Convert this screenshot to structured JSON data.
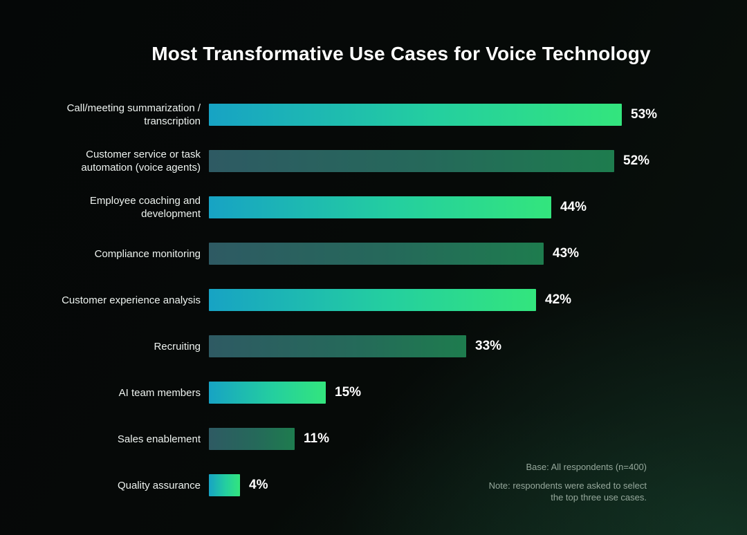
{
  "chart_data": {
    "type": "bar",
    "orientation": "horizontal",
    "title": "Most Transformative Use Cases for Voice Technology",
    "categories": [
      "Call/meeting summarization / transcription",
      "Customer service or task automation (voice agents)",
      "Employee coaching and development",
      "Compliance monitoring",
      "Customer experience analysis",
      "Recruiting",
      "AI team members",
      "Sales enablement",
      "Quality assurance"
    ],
    "values": [
      53,
      52,
      44,
      43,
      42,
      33,
      15,
      11,
      4
    ],
    "value_suffix": "%",
    "xlim": [
      0,
      55
    ],
    "xlabel": "",
    "ylabel": "",
    "grid": false,
    "legend": false,
    "bar_style_alternation": [
      "bright",
      "dark"
    ],
    "colors": {
      "bright_gradient_start": "#17a3c4",
      "bright_gradient_end": "#33e57d",
      "dark_gradient_start": "#2e5a63",
      "dark_gradient_end": "#1e7c4e",
      "background": "#060a08",
      "title_text": "#ffffff",
      "label_text": "#eef3f0",
      "note_text": "#96a89c"
    }
  },
  "notes": {
    "base": "Base: All respondents (n=400)",
    "method": "Note: respondents were asked to select the top three use cases."
  }
}
